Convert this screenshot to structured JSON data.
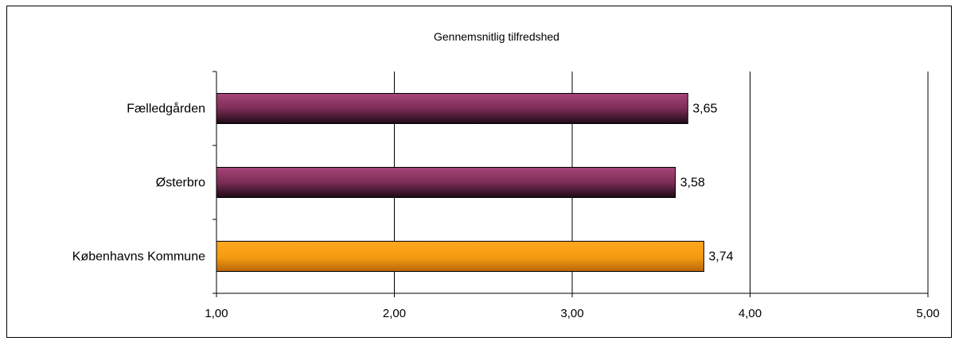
{
  "chart_data": {
    "type": "bar",
    "orientation": "horizontal",
    "title": "Gennemsnitlig tilfredshed",
    "categories": [
      "Fælledgården",
      "Østerbro",
      "Københavns Kommune"
    ],
    "values": [
      3.65,
      3.58,
      3.74
    ],
    "value_labels": [
      "3,65",
      "3,58",
      "3,74"
    ],
    "xlim": [
      1,
      5
    ],
    "x_ticks": [
      1,
      2,
      3,
      4,
      5
    ],
    "x_tick_labels": [
      "1,00",
      "2,00",
      "3,00",
      "4,00",
      "5,00"
    ],
    "xlabel": "",
    "ylabel": "",
    "grid": true,
    "legend": "none",
    "bar_colors": [
      "#8f3462",
      "#8f3462",
      "#f39a10"
    ]
  }
}
